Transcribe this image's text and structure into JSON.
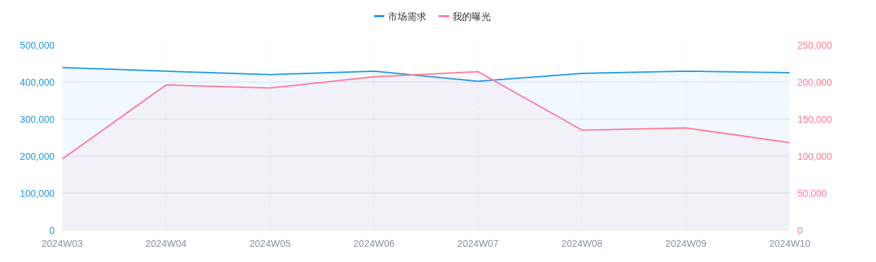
{
  "chart_data": {
    "type": "area",
    "categories": [
      "2024W03",
      "2024W04",
      "2024W05",
      "2024W06",
      "2024W07",
      "2024W08",
      "2024W09",
      "2024W10"
    ],
    "series": [
      {
        "name": "市场需求",
        "color": "#1e9be8",
        "values": [
          439000,
          429000,
          420000,
          429000,
          402000,
          423000,
          429000,
          425000
        ]
      },
      {
        "name": "我的曝光",
        "color": "#ff7a9a",
        "axis": "y2",
        "values": [
          96000,
          196000,
          192000,
          207000,
          214000,
          135000,
          138000,
          118000
        ]
      }
    ],
    "ylim": [
      0,
      500000
    ],
    "yticks": [
      {
        "value": 0,
        "label": "0"
      },
      {
        "value": 100000,
        "label": "100,000"
      },
      {
        "value": 200000,
        "label": "200,000"
      },
      {
        "value": 300000,
        "label": "300,000"
      },
      {
        "value": 400000,
        "label": "400,000"
      },
      {
        "value": 500000,
        "label": "500,000"
      }
    ],
    "y2lim": [
      0,
      250000
    ],
    "y2ticks": [
      {
        "value": 0,
        "label": "0"
      },
      {
        "value": 50000,
        "label": "50,000"
      },
      {
        "value": 100000,
        "label": "100,000"
      },
      {
        "value": 150000,
        "label": "150,000"
      },
      {
        "value": 200000,
        "label": "200,000"
      },
      {
        "value": 250000,
        "label": "250,000"
      }
    ],
    "grid": true,
    "legend": "top"
  }
}
